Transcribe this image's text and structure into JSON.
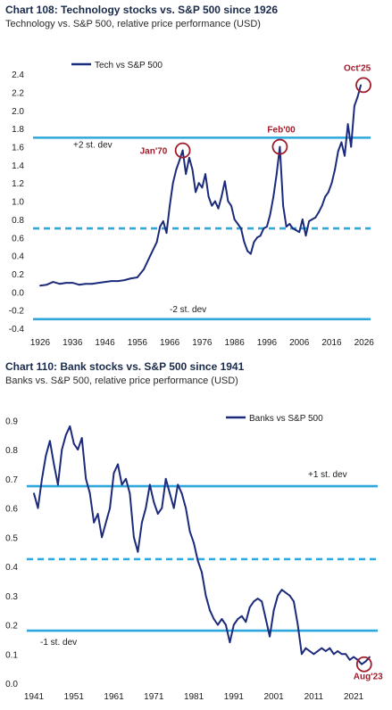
{
  "chart_data": [
    {
      "type": "line",
      "title": "Chart 108: Technology stocks vs. S&P 500 since 1926",
      "subtitle": "Technology vs. S&P 500, relative price performance (USD)",
      "xlabel": "",
      "ylabel": "",
      "xlim": [
        1926,
        2028
      ],
      "ylim": [
        -0.4,
        2.5
      ],
      "x_ticks": [
        1926,
        1936,
        1946,
        1956,
        1966,
        1976,
        1986,
        1996,
        2006,
        2016,
        2026
      ],
      "y_ticks": [
        -0.4,
        -0.2,
        0.0,
        0.2,
        0.4,
        0.6,
        0.8,
        1.0,
        1.2,
        1.4,
        1.6,
        1.8,
        2.0,
        2.2,
        2.4
      ],
      "y_tick_labels": [
        "-0.4",
        "-0.2",
        "0.0",
        "0.2",
        "0.4",
        "0.6",
        "0.8",
        "1.0",
        "1.2",
        "1.4",
        "1.6",
        "1.8",
        "2.0",
        "2.2",
        "2.4"
      ],
      "legend_position": "top-left",
      "grid": false,
      "series": [
        {
          "name": "Tech vs S&P 500",
          "color": "#1b2a7a",
          "x": [
            1926,
            1928,
            1930,
            1932,
            1934,
            1936,
            1938,
            1940,
            1942,
            1944,
            1946,
            1948,
            1950,
            1952,
            1954,
            1956,
            1958,
            1960,
            1962,
            1963,
            1964,
            1965,
            1966,
            1967,
            1968,
            1969,
            1970,
            1971,
            1972,
            1973,
            1974,
            1975,
            1976,
            1977,
            1978,
            1979,
            1980,
            1981,
            1982,
            1983,
            1984,
            1985,
            1986,
            1987,
            1988,
            1989,
            1990,
            1991,
            1992,
            1993,
            1994,
            1995,
            1996,
            1997,
            1998,
            1999,
            2000,
            2001,
            2002,
            2003,
            2004,
            2005,
            2006,
            2007,
            2008,
            2009,
            2010,
            2011,
            2012,
            2013,
            2014,
            2015,
            2016,
            2017,
            2018,
            2019,
            2020,
            2021,
            2022,
            2023,
            2024,
            2025
          ],
          "values": [
            0.07,
            0.08,
            0.11,
            0.09,
            0.1,
            0.1,
            0.08,
            0.09,
            0.09,
            0.1,
            0.11,
            0.12,
            0.12,
            0.13,
            0.15,
            0.16,
            0.25,
            0.4,
            0.55,
            0.72,
            0.78,
            0.65,
            0.95,
            1.2,
            1.35,
            1.45,
            1.56,
            1.3,
            1.48,
            1.35,
            1.1,
            1.2,
            1.15,
            1.3,
            1.05,
            0.95,
            1.0,
            0.92,
            1.05,
            1.22,
            1.0,
            0.95,
            0.8,
            0.75,
            0.7,
            0.55,
            0.45,
            0.42,
            0.55,
            0.6,
            0.62,
            0.7,
            0.72,
            0.85,
            1.05,
            1.3,
            1.6,
            0.95,
            0.72,
            0.75,
            0.7,
            0.68,
            0.66,
            0.8,
            0.62,
            0.78,
            0.8,
            0.82,
            0.88,
            0.95,
            1.05,
            1.1,
            1.2,
            1.35,
            1.55,
            1.65,
            1.5,
            1.85,
            1.6,
            2.05,
            2.15,
            2.28
          ]
        }
      ],
      "reference_lines": [
        {
          "y": 1.7,
          "style": "solid",
          "label": "+2 st. dev"
        },
        {
          "y": 0.7,
          "style": "dashed",
          "label": ""
        },
        {
          "y": -0.3,
          "style": "solid",
          "label": "-2 st. dev"
        }
      ],
      "annotations": [
        {
          "text": "Jan'70",
          "x": 1970,
          "y": 1.56
        },
        {
          "text": "Feb'00",
          "x": 2000,
          "y": 1.6
        },
        {
          "text": "Oct'25",
          "x": 2025.8,
          "y": 2.28
        }
      ]
    },
    {
      "type": "line",
      "title": "Chart 110: Bank stocks vs. S&P 500 since 1941",
      "subtitle": "Banks vs. S&P 500, relative price performance (USD)",
      "xlabel": "",
      "ylabel": "",
      "xlim": [
        1941,
        2027
      ],
      "ylim": [
        0.0,
        0.95
      ],
      "x_ticks": [
        1941,
        1951,
        1961,
        1971,
        1981,
        1991,
        2001,
        2011,
        2021
      ],
      "y_ticks": [
        0.0,
        0.1,
        0.2,
        0.3,
        0.4,
        0.5,
        0.6,
        0.7,
        0.8,
        0.9
      ],
      "y_tick_labels": [
        "0.0",
        "0.1",
        "0.2",
        "0.3",
        "0.4",
        "0.5",
        "0.6",
        "0.7",
        "0.8",
        "0.9"
      ],
      "legend_position": "top-right",
      "grid": false,
      "series": [
        {
          "name": "Banks vs S&P 500",
          "color": "#1b2a7a",
          "x": [
            1941,
            1942,
            1943,
            1944,
            1945,
            1946,
            1947,
            1948,
            1949,
            1950,
            1951,
            1952,
            1953,
            1954,
            1955,
            1956,
            1957,
            1958,
            1959,
            1960,
            1961,
            1962,
            1963,
            1964,
            1965,
            1966,
            1967,
            1968,
            1969,
            1970,
            1971,
            1972,
            1973,
            1974,
            1975,
            1976,
            1977,
            1978,
            1979,
            1980,
            1981,
            1982,
            1983,
            1984,
            1985,
            1986,
            1987,
            1988,
            1989,
            1990,
            1991,
            1992,
            1993,
            1994,
            1995,
            1996,
            1997,
            1998,
            1999,
            2000,
            2001,
            2002,
            2003,
            2004,
            2005,
            2006,
            2007,
            2008,
            2009,
            2010,
            2011,
            2012,
            2013,
            2014,
            2015,
            2016,
            2017,
            2018,
            2019,
            2020,
            2021,
            2022,
            2023,
            2024,
            2025
          ],
          "values": [
            0.65,
            0.6,
            0.7,
            0.78,
            0.83,
            0.75,
            0.68,
            0.8,
            0.85,
            0.88,
            0.82,
            0.8,
            0.84,
            0.7,
            0.65,
            0.55,
            0.58,
            0.5,
            0.55,
            0.6,
            0.72,
            0.75,
            0.68,
            0.7,
            0.65,
            0.5,
            0.45,
            0.55,
            0.6,
            0.68,
            0.62,
            0.58,
            0.6,
            0.7,
            0.65,
            0.6,
            0.68,
            0.65,
            0.6,
            0.52,
            0.48,
            0.42,
            0.38,
            0.3,
            0.25,
            0.22,
            0.2,
            0.22,
            0.2,
            0.14,
            0.2,
            0.22,
            0.23,
            0.21,
            0.26,
            0.28,
            0.29,
            0.28,
            0.22,
            0.16,
            0.25,
            0.3,
            0.32,
            0.31,
            0.3,
            0.28,
            0.2,
            0.1,
            0.12,
            0.11,
            0.1,
            0.11,
            0.12,
            0.11,
            0.12,
            0.1,
            0.11,
            0.1,
            0.1,
            0.08,
            0.09,
            0.08,
            0.065,
            0.075,
            0.09
          ]
        }
      ],
      "reference_lines": [
        {
          "y": 0.675,
          "style": "solid",
          "label": "+1 st. dev"
        },
        {
          "y": 0.425,
          "style": "dashed",
          "label": ""
        },
        {
          "y": 0.18,
          "style": "solid",
          "label": "-1 st. dev"
        }
      ],
      "annotations": [
        {
          "text": "Aug'23",
          "x": 2023.6,
          "y": 0.065
        }
      ]
    }
  ],
  "colors": {
    "series": "#1b2a7a",
    "reference": "#2ea8dc",
    "annotation": "#a01c2c"
  }
}
